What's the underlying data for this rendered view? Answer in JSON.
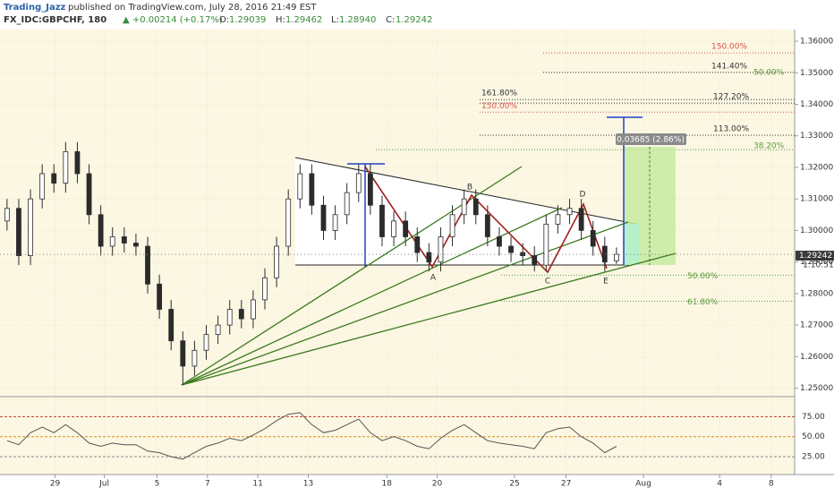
{
  "chart_data": {
    "type": "candlestick",
    "header": {
      "author": "Trading_Jazz",
      "published": "published on TradingView.com, July 28, 2016 21:49 EST",
      "symbol": "FX_IDC:GBPCHF, 180",
      "change": "▲ +0.00214 (+0.17%)",
      "o_label": "O:",
      "o": "1.29039",
      "h_label": "H:",
      "h": "1.29462",
      "l_label": "L:",
      "l": "1.28940",
      "c_label": "C:",
      "c": "1.29242"
    },
    "open": [
      1.303,
      1.307,
      1.292,
      1.31,
      1.318,
      1.315,
      1.325,
      1.318,
      1.305,
      1.295,
      1.298,
      1.296,
      1.295,
      1.283,
      1.275,
      1.265,
      1.257,
      1.262,
      1.267,
      1.27,
      1.275,
      1.272,
      1.278,
      1.285,
      1.295,
      1.31,
      1.318,
      1.308,
      1.3,
      1.305,
      1.312,
      1.318,
      1.308,
      1.298,
      1.303,
      1.298,
      1.293,
      1.29,
      1.298,
      1.305,
      1.31,
      1.305,
      1.298,
      1.295,
      1.293,
      1.292,
      1.289,
      1.302,
      1.305,
      1.307,
      1.3,
      1.295,
      1.29039
    ],
    "high": [
      1.31,
      1.31,
      1.313,
      1.321,
      1.321,
      1.328,
      1.328,
      1.321,
      1.308,
      1.301,
      1.301,
      1.299,
      1.298,
      1.286,
      1.278,
      1.268,
      1.265,
      1.27,
      1.273,
      1.278,
      1.278,
      1.281,
      1.288,
      1.298,
      1.313,
      1.321,
      1.321,
      1.311,
      1.308,
      1.315,
      1.321,
      1.321,
      1.311,
      1.306,
      1.306,
      1.301,
      1.296,
      1.301,
      1.308,
      1.313,
      1.313,
      1.308,
      1.301,
      1.298,
      1.296,
      1.295,
      1.305,
      1.308,
      1.31,
      1.31,
      1.303,
      1.298,
      1.29462
    ],
    "low": [
      1.3,
      1.289,
      1.289,
      1.307,
      1.312,
      1.312,
      1.315,
      1.302,
      1.292,
      1.292,
      1.293,
      1.292,
      1.28,
      1.272,
      1.262,
      1.251,
      1.254,
      1.259,
      1.264,
      1.267,
      1.269,
      1.269,
      1.275,
      1.282,
      1.292,
      1.307,
      1.305,
      1.297,
      1.297,
      1.302,
      1.309,
      1.305,
      1.295,
      1.295,
      1.295,
      1.29,
      1.287,
      1.287,
      1.295,
      1.302,
      1.302,
      1.295,
      1.292,
      1.29,
      1.289,
      1.287,
      1.287,
      1.299,
      1.302,
      1.297,
      1.292,
      1.287,
      1.2894
    ],
    "close": [
      1.307,
      1.292,
      1.31,
      1.318,
      1.315,
      1.325,
      1.318,
      1.305,
      1.295,
      1.298,
      1.296,
      1.295,
      1.283,
      1.275,
      1.265,
      1.257,
      1.262,
      1.267,
      1.27,
      1.275,
      1.272,
      1.278,
      1.285,
      1.295,
      1.31,
      1.318,
      1.308,
      1.3,
      1.305,
      1.312,
      1.318,
      1.308,
      1.298,
      1.303,
      1.298,
      1.293,
      1.29,
      1.298,
      1.305,
      1.31,
      1.305,
      1.298,
      1.295,
      1.293,
      1.292,
      1.289,
      1.302,
      1.305,
      1.307,
      1.3,
      1.295,
      1.29,
      1.29242
    ],
    "up_color": "#ffffff",
    "down_color": "#2b2b2b",
    "xlim": [
      -0.6,
      67.2
    ],
    "xticks": [
      {
        "value": 4.1,
        "label": "29"
      },
      {
        "value": 8.3,
        "label": "Jul"
      },
      {
        "value": 12.8,
        "label": "5"
      },
      {
        "value": 17.1,
        "label": "7"
      },
      {
        "value": 21.4,
        "label": "11"
      },
      {
        "value": 25.7,
        "label": "13"
      },
      {
        "value": 32.4,
        "label": "18"
      },
      {
        "value": 36.7,
        "label": "20"
      },
      {
        "value": 43.3,
        "label": "25"
      },
      {
        "value": 47.7,
        "label": "27"
      },
      {
        "value": 54.3,
        "label": "Aug"
      },
      {
        "value": 60.8,
        "label": "4"
      },
      {
        "value": 65.2,
        "label": "8"
      }
    ],
    "ylim": [
      1.2476,
      1.3637
    ],
    "yticks": [
      {
        "value": 1.36,
        "label": "1.36000"
      },
      {
        "value": 1.35,
        "label": "1.35000"
      },
      {
        "value": 1.34,
        "label": "1.34000"
      },
      {
        "value": 1.33,
        "label": "1.33000"
      },
      {
        "value": 1.32,
        "label": "1.32000"
      },
      {
        "value": 1.31,
        "label": "1.31000"
      },
      {
        "value": 1.3,
        "label": "1.30000"
      },
      {
        "value": 1.29,
        "label": "1.29000"
      },
      {
        "value": 1.28,
        "label": "1.28000"
      },
      {
        "value": 1.27,
        "label": "1.27000"
      },
      {
        "value": 1.26,
        "label": "1.26000"
      },
      {
        "value": 1.25,
        "label": "1.25000"
      }
    ],
    "last_price": {
      "value": 1.29242,
      "label": "1.29242"
    },
    "countdown": "1:10:51",
    "fib_levels": [
      {
        "label": "150.00%",
        "value": 1.3563,
        "color": "#d9534f"
      },
      {
        "label": "141.40%",
        "value": 1.3501,
        "color": "#333333"
      },
      {
        "label": "50.00%",
        "value": 1.3489,
        "color": "#5a9a3a"
      },
      {
        "label": "161.80%",
        "value": 1.3415,
        "color": "#333333"
      },
      {
        "label": "127.20%",
        "value": 1.3404,
        "color": "#333333"
      },
      {
        "label": "150.00%",
        "value": 1.3375,
        "color": "#d9534f"
      },
      {
        "label": "113.00%",
        "value": 1.3302,
        "color": "#333333"
      },
      {
        "label": "38.20%",
        "value": 1.3256,
        "color": "#5a9a3a"
      },
      {
        "label": "50.00%",
        "value": 1.2858,
        "color": "#5a9a3a"
      },
      {
        "label": "61.80%",
        "value": 1.2776,
        "color": "#5a9a3a"
      }
    ],
    "pattern_points": [
      "A",
      "B",
      "C",
      "D",
      "E"
    ],
    "measure_label": "0.03685 (2.86%)",
    "rsi": {
      "values": [
        45,
        40,
        55,
        62,
        55,
        65,
        55,
        42,
        38,
        42,
        40,
        40,
        32,
        30,
        25,
        22,
        30,
        38,
        42,
        48,
        45,
        52,
        60,
        70,
        78,
        80,
        65,
        55,
        58,
        65,
        72,
        55,
        45,
        50,
        45,
        38,
        35,
        48,
        58,
        65,
        55,
        45,
        42,
        40,
        38,
        35,
        55,
        60,
        62,
        50,
        42,
        30,
        38
      ],
      "color": "#555555",
      "ylim": [
        5,
        100
      ],
      "yticks": [
        {
          "value": 75,
          "label": "75.00"
        },
        {
          "value": 50,
          "label": "50.00"
        },
        {
          "value": 25,
          "label": "25.00"
        }
      ]
    }
  }
}
